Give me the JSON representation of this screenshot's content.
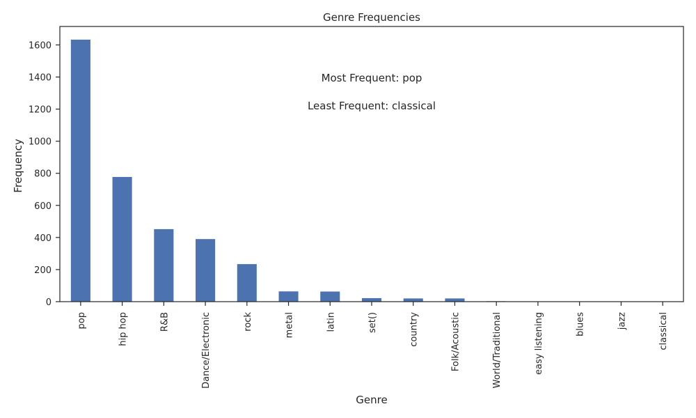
{
  "chart_data": {
    "type": "bar",
    "title": "Genre Frequencies",
    "xlabel": "Genre",
    "ylabel": "Frequency",
    "categories": [
      "pop",
      "hip hop",
      "R&B",
      "Dance/Electronic",
      "rock",
      "metal",
      "latin",
      "set()",
      "country",
      "Folk/Acoustic",
      "World/Traditional",
      "easy listening",
      "blues",
      "jazz",
      "classical"
    ],
    "values": [
      1633,
      777,
      452,
      390,
      234,
      64,
      63,
      22,
      20,
      20,
      3,
      2,
      2,
      2,
      1
    ],
    "ylim": [
      0,
      1715
    ],
    "yticks": [
      0,
      200,
      400,
      600,
      800,
      1000,
      1200,
      1400,
      1600
    ],
    "bar_color": "#4c72b0",
    "grid": false,
    "annotations": [
      "Most Frequent: pop",
      "Least Frequent: classical"
    ]
  }
}
